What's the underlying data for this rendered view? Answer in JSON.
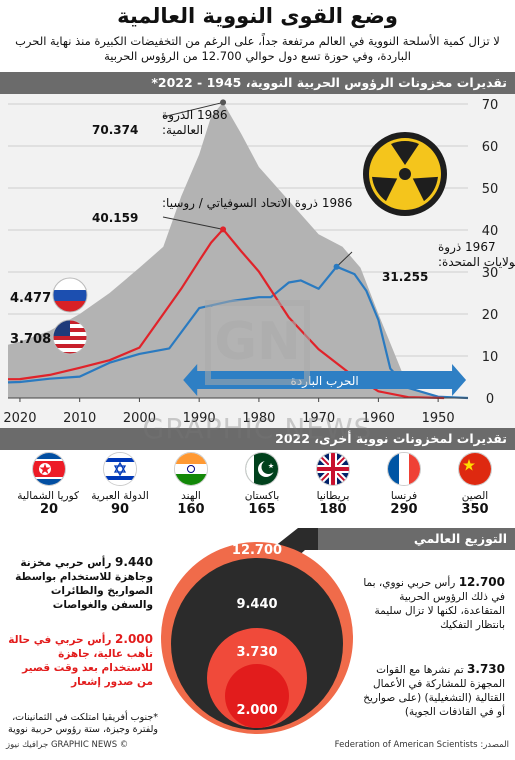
{
  "title": "وضع القوى النووية العالمية",
  "subtitle": "لا تزال كمية الأسلحة النووية في العالم مرتفعة جداً، على الرغم من التخفيضات الكبيرة منذ نهاية الحرب الباردة، وفي حوزة تسع دول حوالي 12.700 من الرؤوس الحربية",
  "chart_title": "تقديرات مخزونات الرؤوس الحربية النووية، 1945 - 2022*",
  "chart_data": {
    "type": "area",
    "x_range": [
      1945,
      2022
    ],
    "ylim": [
      0,
      70
    ],
    "yticks": [
      0,
      10,
      20,
      30,
      40,
      50,
      60,
      70
    ],
    "xticks": [
      1950,
      1960,
      1970,
      1980,
      1990,
      2000,
      2010,
      2020
    ],
    "x_reversed": true,
    "series": [
      {
        "name": "global",
        "color": "#b3b3b3",
        "kind": "area",
        "x": [
          1945,
          1950,
          1955,
          1960,
          1963,
          1966,
          1970,
          1975,
          1980,
          1983,
          1986,
          1988,
          1990,
          1993,
          1996,
          2000,
          2005,
          2010,
          2015,
          2020,
          2022
        ],
        "y": [
          0,
          0.3,
          2.5,
          20,
          31,
          36,
          39,
          47,
          55,
          63,
          70.374,
          67,
          58,
          48,
          36,
          31,
          25,
          20,
          16,
          13.4,
          12.7
        ]
      },
      {
        "name": "usa",
        "color": "#2a7ac0",
        "kind": "line",
        "x": [
          1945,
          1950,
          1955,
          1958,
          1960,
          1962,
          1964,
          1967,
          1970,
          1973,
          1975,
          1978,
          1980,
          1985,
          1990,
          1995,
          2000,
          2005,
          2010,
          2015,
          2020,
          2022
        ],
        "y": [
          0,
          0.3,
          2.4,
          7,
          18.6,
          25.5,
          29.5,
          31.255,
          26,
          28,
          27.5,
          24,
          24,
          23,
          21.4,
          11.8,
          10.5,
          8.4,
          5.1,
          4.6,
          3.8,
          3.708
        ]
      },
      {
        "name": "russia",
        "color": "#e0232a",
        "kind": "line",
        "x": [
          1949,
          1955,
          1960,
          1965,
          1970,
          1975,
          1980,
          1983,
          1986,
          1988,
          1990,
          1993,
          1996,
          2000,
          2005,
          2010,
          2015,
          2020,
          2022
        ],
        "y": [
          0,
          0.2,
          1.6,
          6.1,
          11.6,
          19.2,
          30.1,
          35,
          40.159,
          37,
          32.7,
          26,
          20,
          12,
          9,
          7.2,
          5.5,
          4.5,
          4.477
        ]
      }
    ],
    "annotations": [
      {
        "year": "1986",
        "label": "الذروة العالمية:",
        "value": "70.374"
      },
      {
        "year": "1986",
        "label": "ذروة الاتحاد السوفياتي / روسيا:",
        "value": "40.159"
      },
      {
        "year": "1967",
        "label": "ذروة الولايات المتحدة:",
        "value": "31.255"
      }
    ],
    "end_labels": {
      "russia": "4.477",
      "usa": "3.708"
    },
    "cold_war_label": "الحرب الباردة"
  },
  "countries_title": "تقديرات لمخزونات نووية أخرى، 2022",
  "countries": [
    {
      "name": "الصين",
      "value": "350",
      "flag": "china"
    },
    {
      "name": "فرنسا",
      "value": "290",
      "flag": "france"
    },
    {
      "name": "بريطانيا",
      "value": "180",
      "flag": "uk"
    },
    {
      "name": "باكستان",
      "value": "165",
      "flag": "pakistan"
    },
    {
      "name": "الهند",
      "value": "160",
      "flag": "india"
    },
    {
      "name": "الدولة العبرية",
      "value": "90",
      "flag": "israel"
    },
    {
      "name": "كوريا الشمالية",
      "value": "20",
      "flag": "northkorea"
    }
  ],
  "distribution_title": "التوزيع العالمي",
  "circles": [
    {
      "value": "12.700",
      "color": "#f06b4a"
    },
    {
      "value": "9.440",
      "color": "#2b2b2b"
    },
    {
      "value": "3.730",
      "color": "#f04a3a"
    },
    {
      "value": "2.000",
      "color": "#e21c1c"
    }
  ],
  "notes": {
    "total_value": "12.700",
    "total_text": "رأس حربي نووي، بما في ذلك الرؤوس الحربية المتقاعدة، لكنها لا تزال سليمة بانتظار التفكيك",
    "stockpile_value": "9.440",
    "stockpile_text": "رأس حربي مخزنة وجاهزة للاستخدام بواسطة الصواريخ والطائرات والسفن والغواصات",
    "deployed_value": "3.730",
    "deployed_text": "تم نشرها مع القوات المجهزة للمشاركة في الأعمال القتالية (التشغيلية) (على صواريخ أو في القاذفات الجوية)",
    "alert_value": "2.000",
    "alert_text": "رأس حربي في حالة تأهب عالية، جاهزة للاستخدام بعد وقت قصير من صدور إشعار"
  },
  "footnote": "*جنوب أفريقيا امتلكت في الثمانينات، ولفترة وجيزة، ستة رؤوس حربية نووية",
  "source": "المصدر: Federation of American Scientists",
  "credit": "© GRAPHIC NEWS جرافيك نيوز",
  "watermark": "GRAPHIC NEWS",
  "watermark_logo": "GN"
}
